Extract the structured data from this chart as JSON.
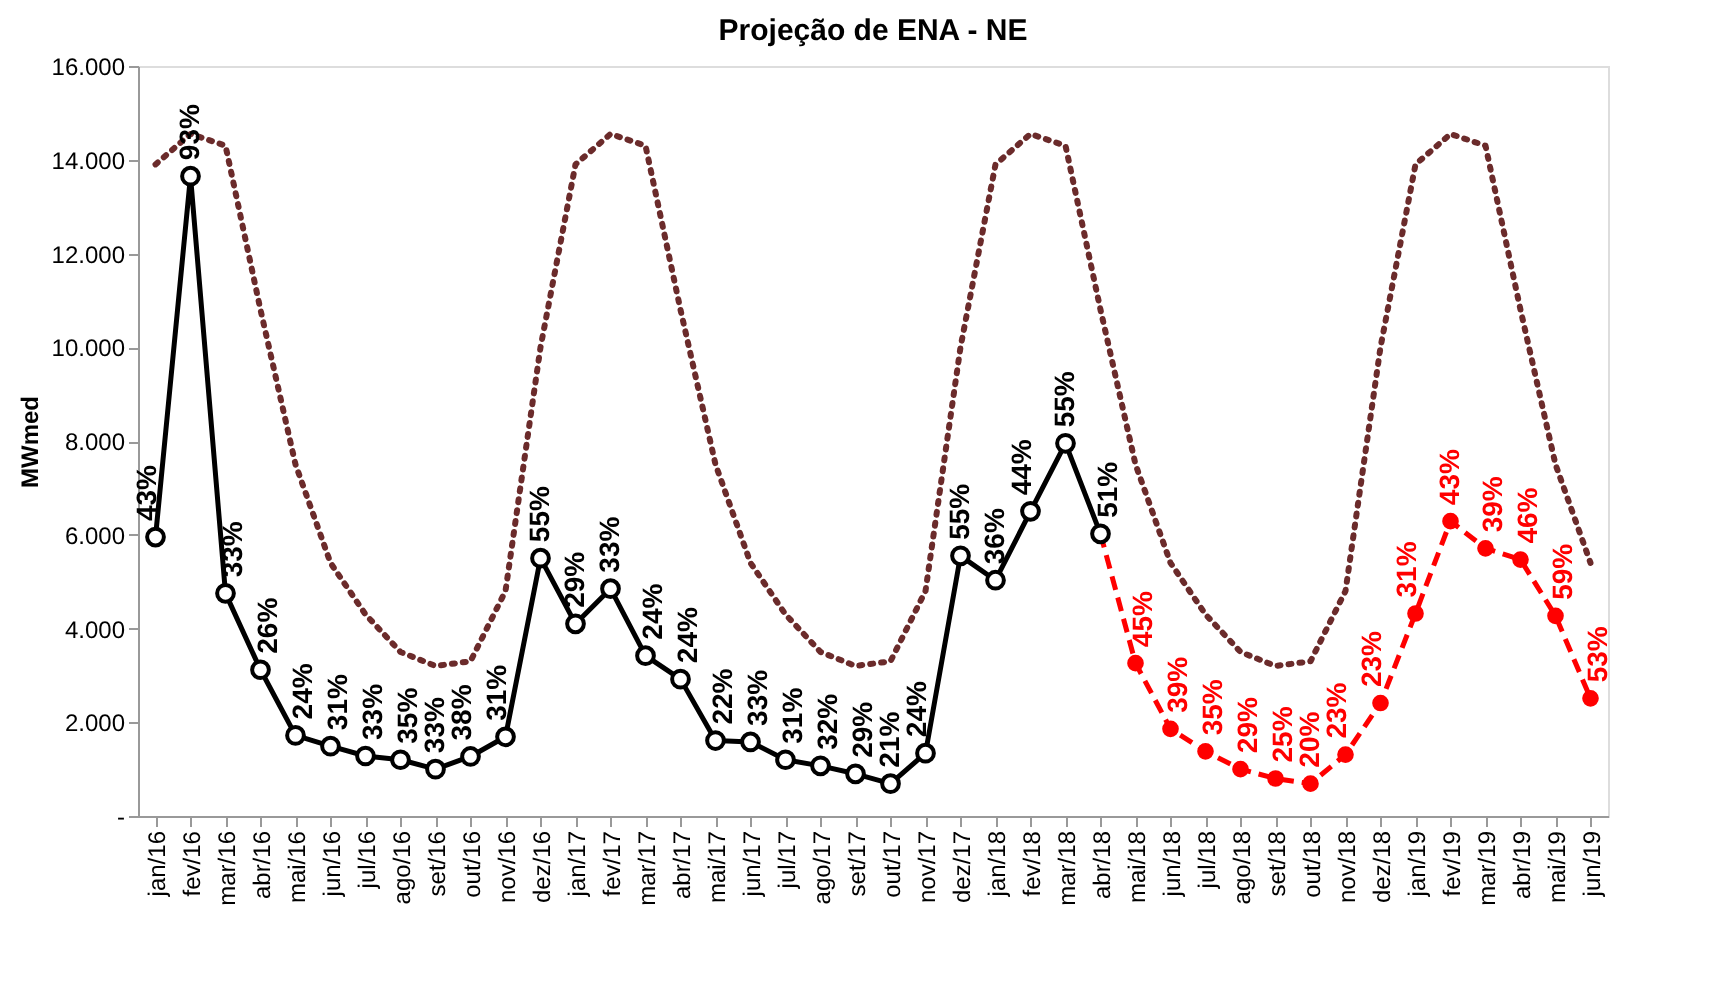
{
  "chart_data": {
    "type": "line",
    "title": "Projeção de ENA - NE",
    "ylabel": "MWmed",
    "categories": [
      "jan/16",
      "fev/16",
      "mar/16",
      "abr/16",
      "mai/16",
      "jun/16",
      "jul/16",
      "ago/16",
      "set/16",
      "out/16",
      "nov/16",
      "dez/16",
      "jan/17",
      "fev/17",
      "mar/17",
      "abr/17",
      "mai/17",
      "jun/17",
      "jul/17",
      "ago/17",
      "set/17",
      "out/17",
      "nov/17",
      "dez/17",
      "jan/18",
      "fev/18",
      "mar/18",
      "abr/18",
      "mai/18",
      "jun/18",
      "jul/18",
      "ago/18",
      "set/18",
      "out/18",
      "nov/18",
      "dez/18",
      "jan/19",
      "fev/19",
      "mar/19",
      "abr/19",
      "mai/19",
      "jun/19"
    ],
    "ylim": [
      0,
      16000
    ],
    "yticks": [
      {
        "value": 0,
        "label": "-"
      },
      {
        "value": 2000,
        "label": "2.000"
      },
      {
        "value": 4000,
        "label": "4.000"
      },
      {
        "value": 6000,
        "label": "6.000"
      },
      {
        "value": 8000,
        "label": "8.000"
      },
      {
        "value": 10000,
        "label": "10.000"
      },
      {
        "value": 12000,
        "label": "12.000"
      },
      {
        "value": 14000,
        "label": "14.000"
      },
      {
        "value": 16000,
        "label": "16.000"
      }
    ],
    "grid": false,
    "series": [
      {
        "color": "#6b2b2b",
        "line_style": "dotted",
        "marker": "none",
        "values": [
          13900,
          14550,
          14300,
          10800,
          7500,
          5400,
          4300,
          3500,
          3200,
          3300,
          4800,
          10000,
          13900,
          14550,
          14300,
          10800,
          7500,
          5400,
          4300,
          3500,
          3200,
          3300,
          4800,
          10000,
          13900,
          14550,
          14300,
          10800,
          7500,
          5400,
          4300,
          3500,
          3200,
          3300,
          4800,
          10000,
          13900,
          14550,
          14300,
          10800,
          7500,
          5400
        ]
      },
      {
        "color": "#000000",
        "line_style": "solid",
        "marker": "circle",
        "values": [
          5950,
          13650,
          4750,
          3120,
          1720,
          1490,
          1280,
          1200,
          1000,
          1270,
          1690,
          5500,
          4100,
          4850,
          3420,
          2920,
          1610,
          1580,
          1200,
          1070,
          900,
          690,
          1340,
          5550,
          5030,
          6500,
          7950,
          6020,
          null,
          null,
          null,
          null,
          null,
          null,
          null,
          null,
          null,
          null,
          null,
          null,
          null,
          null
        ]
      },
      {
        "color": "#ff0000",
        "line_style": "dashed",
        "marker": "circle",
        "values": [
          null,
          null,
          null,
          null,
          null,
          null,
          null,
          null,
          null,
          null,
          null,
          null,
          null,
          null,
          null,
          null,
          null,
          null,
          null,
          null,
          null,
          null,
          null,
          null,
          null,
          null,
          null,
          6020,
          3260,
          1860,
          1380,
          1000,
          800,
          690,
          1310,
          2410,
          4320,
          6290,
          5710,
          5470,
          4270,
          2510
        ]
      }
    ],
    "annotations": [
      {
        "text": "43%",
        "x": "jan/16",
        "y": 5950
      },
      {
        "text": "93%",
        "x": "fev/16",
        "y": 13650
      },
      {
        "text": "33%",
        "x": "mar/16",
        "y": 4750
      },
      {
        "text": "26%",
        "x": "abr/16",
        "y": 3120
      },
      {
        "text": "24%",
        "x": "mai/16",
        "y": 1720
      },
      {
        "text": "31%",
        "x": "jun/16",
        "y": 1490
      },
      {
        "text": "33%",
        "x": "jul/16",
        "y": 1280
      },
      {
        "text": "35%",
        "x": "ago/16",
        "y": 1200
      },
      {
        "text": "33%",
        "x": "set/16",
        "y": 1000
      },
      {
        "text": "38%",
        "x": "out/16",
        "y": 1270
      },
      {
        "text": "31%",
        "x": "nov/16",
        "y": 1690
      },
      {
        "text": "55%",
        "x": "dez/16",
        "y": 5500
      },
      {
        "text": "29%",
        "x": "jan/17",
        "y": 4100
      },
      {
        "text": "33%",
        "x": "fev/17",
        "y": 4850
      },
      {
        "text": "24%",
        "x": "mar/17",
        "y": 3420
      },
      {
        "text": "24%",
        "x": "abr/17",
        "y": 2920
      },
      {
        "text": "22%",
        "x": "mai/17",
        "y": 1610
      },
      {
        "text": "33%",
        "x": "jun/17",
        "y": 1580
      },
      {
        "text": "31%",
        "x": "jul/17",
        "y": 1200
      },
      {
        "text": "32%",
        "x": "ago/17",
        "y": 1070
      },
      {
        "text": "29%",
        "x": "set/17",
        "y": 900
      },
      {
        "text": "21%",
        "x": "out/17",
        "y": 690
      },
      {
        "text": "24%",
        "x": "nov/17",
        "y": 1340
      },
      {
        "text": "55%",
        "x": "dez/17",
        "y": 5550
      },
      {
        "text": "36%",
        "x": "jan/18",
        "y": 5030
      },
      {
        "text": "44%",
        "x": "fev/18",
        "y": 6500
      },
      {
        "text": "55%",
        "x": "mar/18",
        "y": 7950
      },
      {
        "text": "51%",
        "x": "abr/18",
        "y": 6020
      },
      {
        "text": "45%",
        "x": "mai/18",
        "y": 3260
      },
      {
        "text": "39%",
        "x": "jun/18",
        "y": 1860
      },
      {
        "text": "35%",
        "x": "jul/18",
        "y": 1380
      },
      {
        "text": "29%",
        "x": "ago/18",
        "y": 1000
      },
      {
        "text": "25%",
        "x": "set/18",
        "y": 800
      },
      {
        "text": "20%",
        "x": "out/18",
        "y": 690
      },
      {
        "text": "23%",
        "x": "nov/18",
        "y": 1310
      },
      {
        "text": "23%",
        "x": "dez/18",
        "y": 2410
      },
      {
        "text": "31%",
        "x": "jan/19",
        "y": 4320
      },
      {
        "text": "43%",
        "x": "fev/19",
        "y": 6290
      },
      {
        "text": "39%",
        "x": "mar/19",
        "y": 5710
      },
      {
        "text": "46%",
        "x": "abr/19",
        "y": 5470
      },
      {
        "text": "59%",
        "x": "mai/19",
        "y": 4270
      },
      {
        "text": "53%",
        "x": "jun/19",
        "y": 2510
      }
    ]
  }
}
